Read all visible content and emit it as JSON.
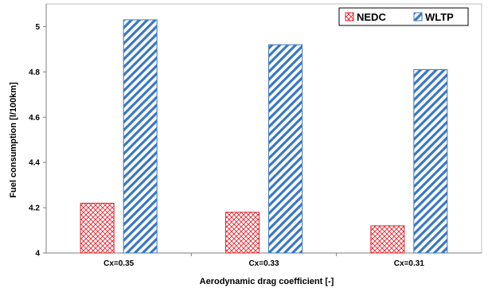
{
  "chart_data": {
    "type": "bar",
    "categories": [
      "Cx=0.35",
      "Cx=0.33",
      "Cx=0.31"
    ],
    "series": [
      {
        "name": "NEDC",
        "values": [
          4.22,
          4.18,
          4.12
        ],
        "color": "#e8212b",
        "pattern": "crosshatch"
      },
      {
        "name": "WLTP",
        "values": [
          5.03,
          4.92,
          4.81
        ],
        "color": "#3a78c0",
        "pattern": "diagonal"
      }
    ],
    "ylim": [
      4.0,
      5.1
    ],
    "yticks": [
      "4",
      "4.2",
      "4.4",
      "4.6",
      "4.8",
      "5"
    ],
    "xlabel": "Aerodynamic drag coefficient [-]",
    "ylabel": "Fuel consumption [l/100km]",
    "grid": false,
    "legend_position": "top-right"
  }
}
